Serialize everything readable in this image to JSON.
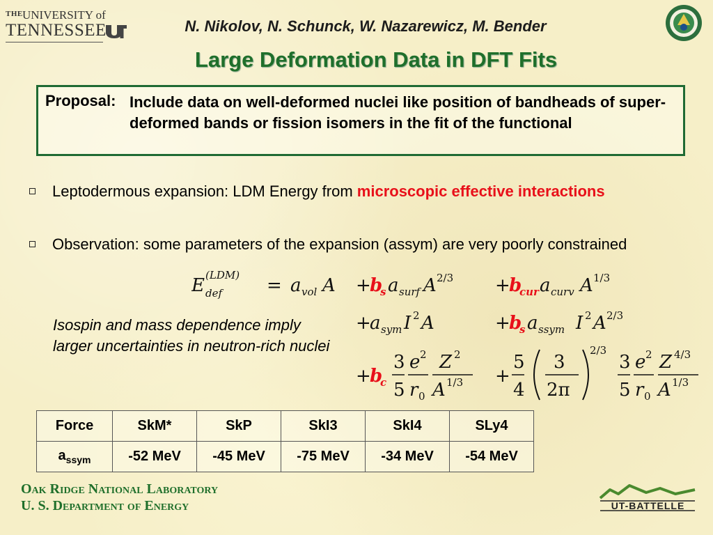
{
  "header": {
    "university_the": "THE",
    "university_of": "UNIVERSITY of",
    "university_name": "TENNESSEE",
    "authors": "N. Nikolov, N. Schunck, W. Nazarewicz, M. Bender",
    "title": "Large Deformation Data in DFT Fits"
  },
  "proposal": {
    "label": "Proposal:",
    "text": "Include data on well-deformed nuclei like position of bandheads of super-deformed bands or fission isomers in the fit of the functional"
  },
  "bullets": [
    {
      "text": "Leptodermous expansion: LDM Energy from ",
      "highlight": "microscopic effective interactions"
    },
    {
      "text": "Observation: some parameters of the expansion (assym) are very poorly constrained"
    }
  ],
  "note": "Isospin and mass dependence imply larger uncertainties in neutron-rich nuclei",
  "table": {
    "header": [
      "Force",
      "SkM*",
      "SkP",
      "SkI3",
      "SkI4",
      "SLy4"
    ],
    "row_label_main": "a",
    "row_label_sub": "ssym",
    "values": [
      "-52 MeV",
      "-45 MeV",
      "-75 MeV",
      "-34 MeV",
      "-54 MeV"
    ]
  },
  "footer": {
    "lab": "Oak Ridge National Laboratory",
    "department": "U. S. Department of Energy",
    "ut_battelle": "UT-BATTELLE"
  },
  "colors": {
    "title_green": "#1f6f2b",
    "highlight_red": "#e8101a",
    "box_border": "#1f6a33",
    "background": "#f6efc8"
  }
}
